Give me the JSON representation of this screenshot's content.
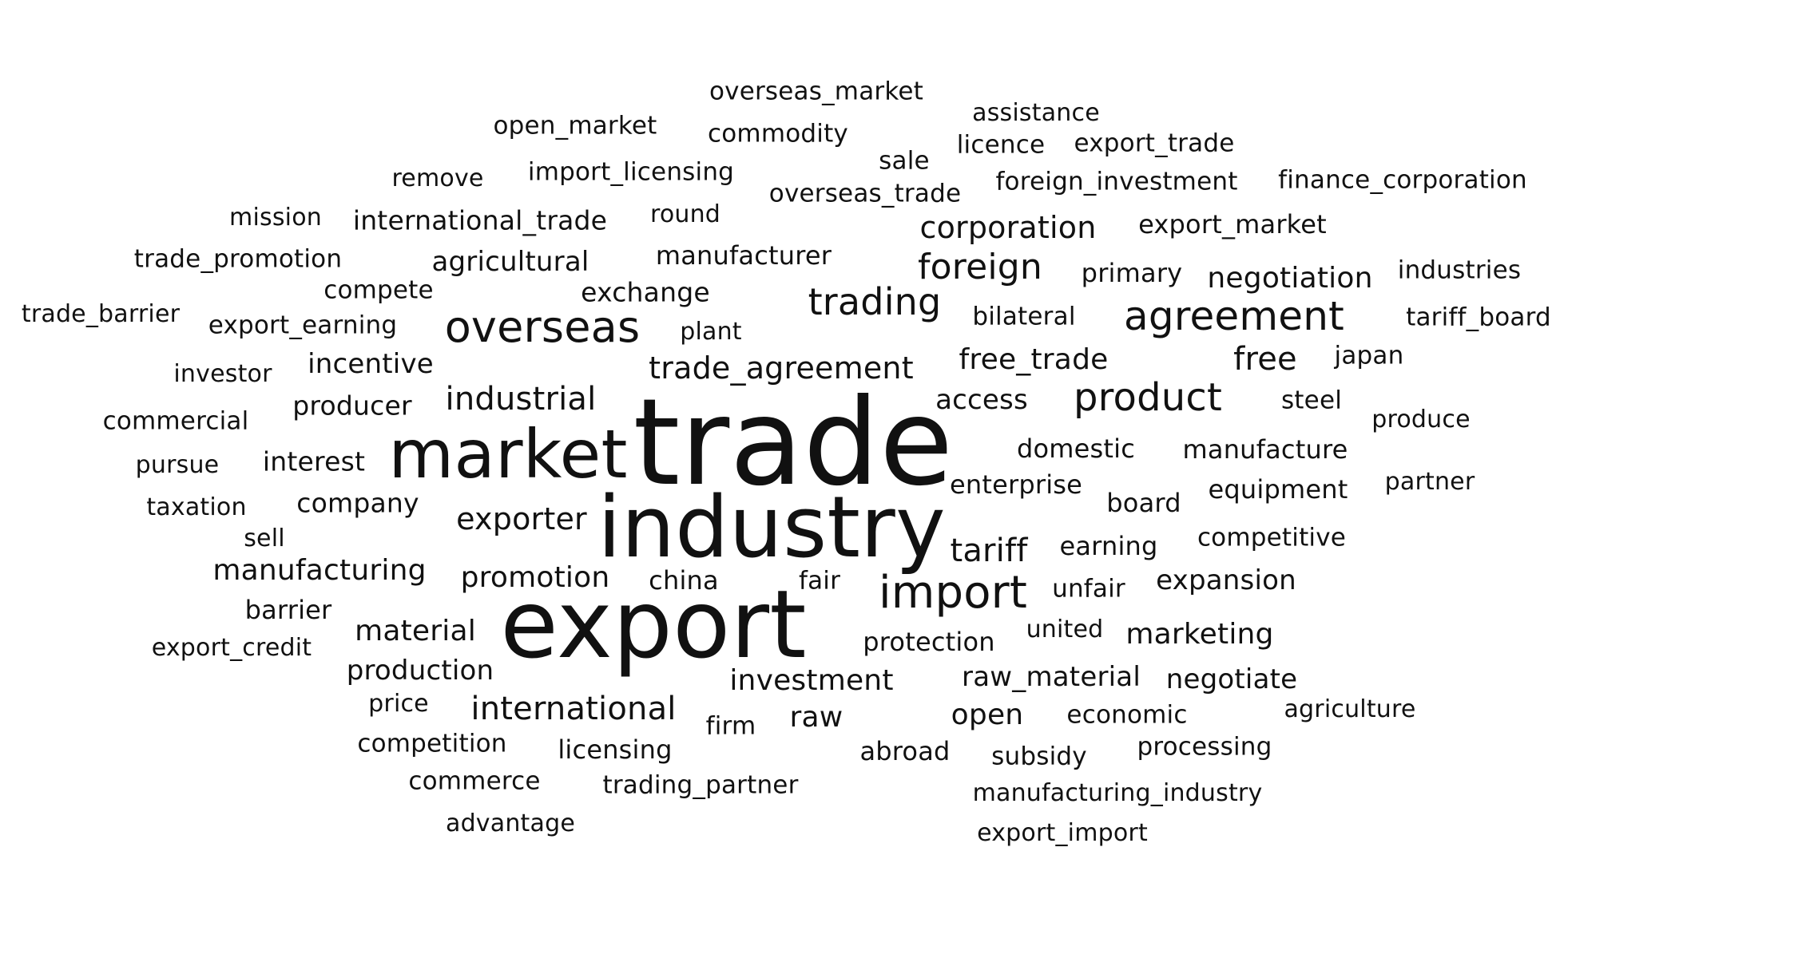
{
  "words": [
    {
      "text": "trade",
      "weight": 1.0
    },
    {
      "text": "industry",
      "weight": 0.85
    },
    {
      "text": "export",
      "weight": 0.9
    },
    {
      "text": "market",
      "weight": 0.72
    },
    {
      "text": "import",
      "weight": 0.5
    },
    {
      "text": "overseas",
      "weight": 0.48
    },
    {
      "text": "agreement",
      "weight": 0.45
    },
    {
      "text": "product",
      "weight": 0.43
    },
    {
      "text": "trading",
      "weight": 0.4
    },
    {
      "text": "foreign",
      "weight": 0.38
    },
    {
      "text": "industrial",
      "weight": 0.36
    },
    {
      "text": "international",
      "weight": 0.36
    },
    {
      "text": "trade_agreement",
      "weight": 0.34
    },
    {
      "text": "free_trade",
      "weight": 0.33
    },
    {
      "text": "free",
      "weight": 0.33
    },
    {
      "text": "corporation",
      "weight": 0.33
    },
    {
      "text": "tariff",
      "weight": 0.33
    },
    {
      "text": "exporter",
      "weight": 0.32
    },
    {
      "text": "promotion",
      "weight": 0.31
    },
    {
      "text": "manufacturing",
      "weight": 0.31
    },
    {
      "text": "investment",
      "weight": 0.31
    },
    {
      "text": "negotiation",
      "weight": 0.3
    },
    {
      "text": "raw",
      "weight": 0.3
    },
    {
      "text": "open",
      "weight": 0.3
    },
    {
      "text": "production",
      "weight": 0.29
    },
    {
      "text": "material",
      "weight": 0.29
    },
    {
      "text": "marketing",
      "weight": 0.29
    },
    {
      "text": "raw_material",
      "weight": 0.29
    },
    {
      "text": "expansion",
      "weight": 0.28
    },
    {
      "text": "negotiate",
      "weight": 0.28
    },
    {
      "text": "export_market",
      "weight": 0.28
    },
    {
      "text": "international_trade",
      "weight": 0.28
    },
    {
      "text": "manufacture",
      "weight": 0.27
    },
    {
      "text": "access",
      "weight": 0.27
    },
    {
      "text": "protection",
      "weight": 0.27
    },
    {
      "text": "earning",
      "weight": 0.27
    },
    {
      "text": "agricultural",
      "weight": 0.27
    },
    {
      "text": "incentive",
      "weight": 0.27
    },
    {
      "text": "producer",
      "weight": 0.27
    },
    {
      "text": "company",
      "weight": 0.27
    },
    {
      "text": "manufacturer",
      "weight": 0.27
    },
    {
      "text": "exchange",
      "weight": 0.27
    },
    {
      "text": "domestic",
      "weight": 0.26
    },
    {
      "text": "enterprise",
      "weight": 0.26
    },
    {
      "text": "board",
      "weight": 0.26
    },
    {
      "text": "equipment",
      "weight": 0.26
    },
    {
      "text": "primary",
      "weight": 0.26
    },
    {
      "text": "interest",
      "weight": 0.26
    },
    {
      "text": "barrier",
      "weight": 0.26
    },
    {
      "text": "china",
      "weight": 0.25
    },
    {
      "text": "foreign_investment",
      "weight": 0.25
    },
    {
      "text": "finance_corporation",
      "weight": 0.25
    },
    {
      "text": "competitive",
      "weight": 0.25
    },
    {
      "text": "economic",
      "weight": 0.25
    },
    {
      "text": "licensing",
      "weight": 0.25
    },
    {
      "text": "abroad",
      "weight": 0.25
    },
    {
      "text": "trading_partner",
      "weight": 0.25
    },
    {
      "text": "firm",
      "weight": 0.25
    },
    {
      "text": "fair",
      "weight": 0.24
    },
    {
      "text": "unfair",
      "weight": 0.24
    },
    {
      "text": "overseas_trade",
      "weight": 0.24
    },
    {
      "text": "import_licensing",
      "weight": 0.24
    },
    {
      "text": "commodity",
      "weight": 0.24
    },
    {
      "text": "processing",
      "weight": 0.24
    },
    {
      "text": "japan",
      "weight": 0.24
    },
    {
      "text": "competition",
      "weight": 0.24
    },
    {
      "text": "subsidy",
      "weight": 0.23
    },
    {
      "text": "manufacturing_industry",
      "weight": 0.23
    },
    {
      "text": "export_earning",
      "weight": 0.23
    },
    {
      "text": "compete",
      "weight": 0.23
    },
    {
      "text": "bilateral",
      "weight": 0.23
    },
    {
      "text": "overseas_market",
      "weight": 0.23
    },
    {
      "text": "open_market",
      "weight": 0.23
    },
    {
      "text": "export_trade",
      "weight": 0.23
    },
    {
      "text": "licence",
      "weight": 0.23
    },
    {
      "text": "commerce",
      "weight": 0.23
    },
    {
      "text": "export_import",
      "weight": 0.22
    },
    {
      "text": "trade_promotion",
      "weight": 0.22
    },
    {
      "text": "commercial",
      "weight": 0.22
    },
    {
      "text": "advantage",
      "weight": 0.22
    },
    {
      "text": "export_credit",
      "weight": 0.22
    },
    {
      "text": "agriculture",
      "weight": 0.22
    },
    {
      "text": "industries",
      "weight": 0.22
    },
    {
      "text": "tariff_board",
      "weight": 0.22
    },
    {
      "text": "united",
      "weight": 0.22
    },
    {
      "text": "steel",
      "weight": 0.22
    },
    {
      "text": "produce",
      "weight": 0.22
    },
    {
      "text": "partner",
      "weight": 0.21
    },
    {
      "text": "assistance",
      "weight": 0.21
    },
    {
      "text": "remove",
      "weight": 0.21
    },
    {
      "text": "mission",
      "weight": 0.21
    },
    {
      "text": "round",
      "weight": 0.21
    },
    {
      "text": "sale",
      "weight": 0.21
    },
    {
      "text": "plant",
      "weight": 0.21
    },
    {
      "text": "trade_barrier",
      "weight": 0.21
    },
    {
      "text": "investor",
      "weight": 0.21
    },
    {
      "text": "pursue",
      "weight": 0.21
    },
    {
      "text": "taxation",
      "weight": 0.21
    },
    {
      "text": "sell",
      "weight": 0.21
    },
    {
      "text": "price",
      "weight": 0.21
    }
  ]
}
